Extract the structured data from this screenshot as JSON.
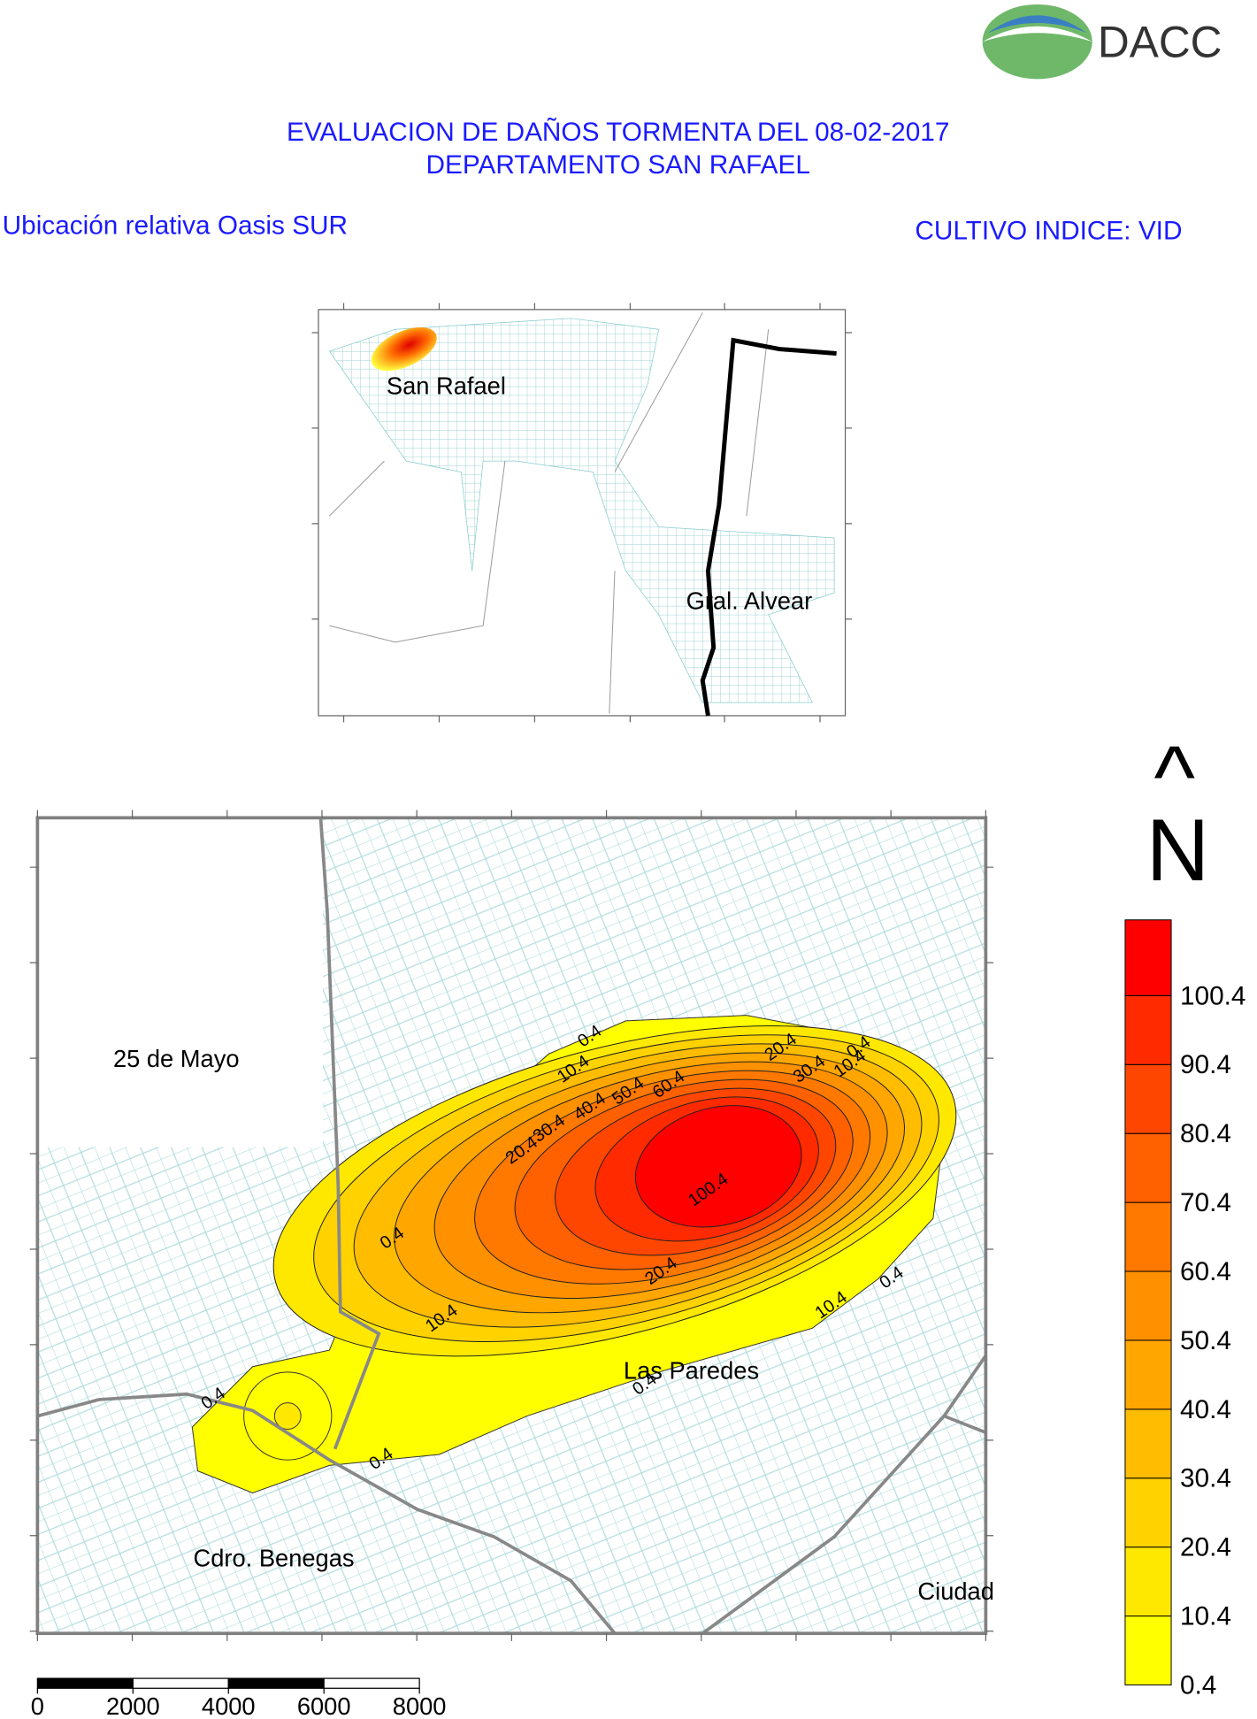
{
  "header": {
    "logo": "DACC",
    "title_line1": "EVALUACION DE DAÑOS TORMENTA DEL 08-02-2017",
    "title_line2": "DEPARTAMENTO SAN RAFAEL",
    "subtitle_left": "Ubicación relativa Oasis SUR",
    "subtitle_right": "CULTIVO INDICE: VID"
  },
  "inset_map": {
    "labels": [
      "San Rafael",
      "Gral. Alvear"
    ]
  },
  "main_map": {
    "place_labels": [
      "25 de Mayo",
      "Las Paredes",
      "Cdro. Benegas",
      "Ciudad"
    ],
    "contour_labels": [
      0.4,
      0.4,
      0.4,
      0.4,
      0.4,
      0.4,
      0.4,
      10.4,
      10.4,
      10.4,
      10.4,
      20.4,
      20.4,
      20.4,
      30.4,
      30.4,
      40.4,
      50.4,
      60.4,
      100.4
    ]
  },
  "north_arrow": {
    "symbol": "^",
    "letter": "N"
  },
  "legend": {
    "values": [
      0.4,
      10.4,
      20.4,
      30.4,
      40.4,
      50.4,
      60.4,
      70.4,
      80.4,
      90.4,
      100.4
    ],
    "colors": [
      "#ffff00",
      "#ffe800",
      "#ffd200",
      "#ffbc00",
      "#ffa600",
      "#ff9000",
      "#ff7800",
      "#ff6000",
      "#ff4600",
      "#ff2a00",
      "#ff0000"
    ]
  },
  "scale_bar": {
    "ticks": [
      0,
      2000,
      4000,
      6000,
      8000
    ]
  }
}
